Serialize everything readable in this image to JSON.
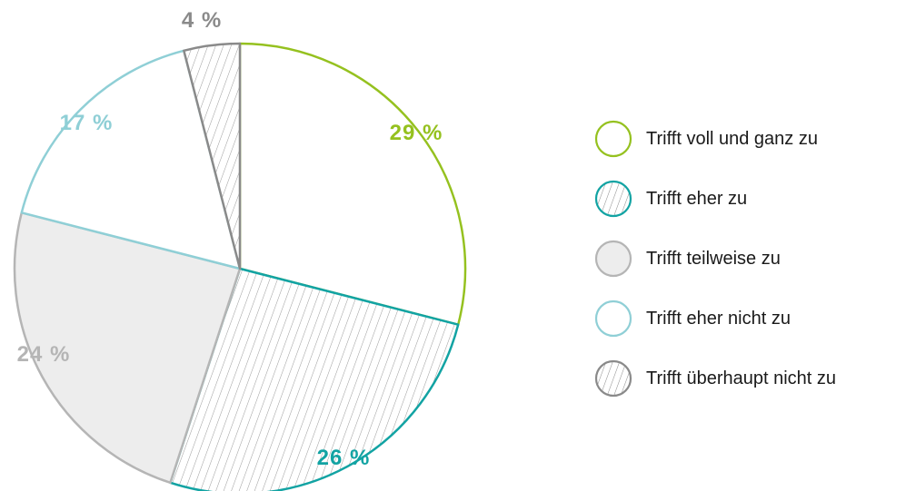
{
  "chart_data": {
    "type": "pie",
    "slices": [
      {
        "label": "Trifft voll und ganz zu",
        "value": 29,
        "value_label": "29 %",
        "stroke": "#95c11f",
        "fill": "#ffffff",
        "pattern": "none",
        "label_color": "#95c11f"
      },
      {
        "label": "Trifft eher zu",
        "value": 26,
        "value_label": "26 %",
        "stroke": "#12a3a3",
        "fill": "#ffffff",
        "pattern": "hatch",
        "label_color": "#12a3a3"
      },
      {
        "label": "Trifft teilweise zu",
        "value": 24,
        "value_label": "24 %",
        "stroke": "#b5b5b5",
        "fill": "#ededed",
        "pattern": "none",
        "label_color": "#b5b5b5"
      },
      {
        "label": "Trifft eher nicht zu",
        "value": 17,
        "value_label": "17 %",
        "stroke": "#8fcfd6",
        "fill": "#ffffff",
        "pattern": "none",
        "label_color": "#8fcfd6"
      },
      {
        "label": "Trifft überhaupt nicht zu",
        "value": 4,
        "value_label": "4 %",
        "stroke": "#8a8a8a",
        "fill": "#ffffff",
        "pattern": "hatch",
        "label_color": "#8a8a8a"
      }
    ],
    "start_direction": "12 o'clock",
    "order": "clockwise",
    "legend_position": "right"
  }
}
